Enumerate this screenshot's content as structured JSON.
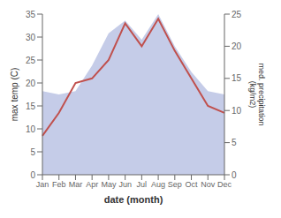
{
  "chart_data": {
    "type": "line",
    "categories": [
      "Jan",
      "Feb",
      "Mar",
      "Apr",
      "May",
      "Jun",
      "Jul",
      "Aug",
      "Sep",
      "Oct",
      "Nov",
      "Dec"
    ],
    "xlabel": "date (month)",
    "ylabel": "max temp (C)",
    "y2label": "med. precipitation\n(kg/m2)",
    "series": [
      {
        "type": "area",
        "axis": "y2",
        "color": "#c5cce8",
        "values": [
          13.0,
          12.5,
          13.0,
          17.0,
          22.0,
          24.0,
          21.0,
          25.0,
          20.0,
          16.0,
          13.0,
          12.5
        ]
      },
      {
        "type": "line",
        "axis": "y",
        "color": "#c0504d",
        "values": [
          8.5,
          13.5,
          20.0,
          21.0,
          25.0,
          33.0,
          28.0,
          34.0,
          27.0,
          21.0,
          15.0,
          13.5
        ]
      }
    ],
    "ylim": [
      0,
      35
    ],
    "yticks": [
      0,
      5,
      10,
      15,
      20,
      25,
      30,
      35
    ],
    "y2lim": [
      0,
      25
    ],
    "y2ticks": [
      0,
      5,
      10,
      15,
      20,
      25
    ],
    "grid": false
  }
}
